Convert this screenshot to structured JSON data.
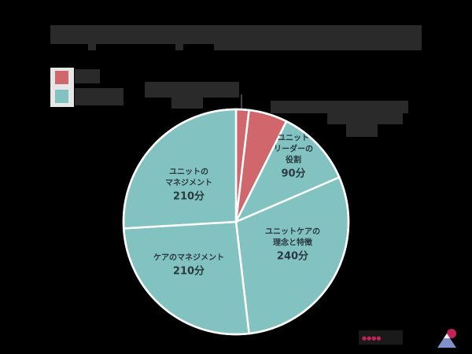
{
  "title": {
    "text": "[redacted title]"
  },
  "legend": {
    "items": [
      {
        "label": "[redacted]",
        "color": "#d0676c"
      },
      {
        "label": "[redacted]",
        "color": "#82c2c0"
      }
    ]
  },
  "external_labels": {
    "top_left": "[redacted]",
    "top_right": "[redacted]"
  },
  "slice_labels": [
    {
      "name": "ユニット\nリーダーの\n役割",
      "value": "90分"
    },
    {
      "name": "ユニットケアの\n理念と特徴",
      "value": "240分"
    },
    {
      "name": "ケアのマネジメント",
      "value": "210分"
    },
    {
      "name": "ユニットの\nマネジメント",
      "value": "210分"
    }
  ],
  "colors": {
    "background": "#000000",
    "red": "#d0676c",
    "teal": "#82c2c0",
    "separator": "#ffffff",
    "label_text": "#2b3a40"
  },
  "chart_data": {
    "type": "pie",
    "title": "",
    "start_angle": 0,
    "direction": "clockwise",
    "unit": "分",
    "slices": [
      {
        "label": "[redacted small slice]",
        "value": 15,
        "color": "#d0676c",
        "labeled": false
      },
      {
        "label": "[redacted]",
        "value": 45,
        "color": "#d0676c",
        "labeled": false
      },
      {
        "label": "ユニットリーダーの役割",
        "value": 90,
        "color": "#82c2c0"
      },
      {
        "label": "ユニットケアの理念と特徴",
        "value": 240,
        "color": "#82c2c0"
      },
      {
        "label": "ケアのマネジメント",
        "value": 210,
        "color": "#82c2c0"
      },
      {
        "label": "ユニットのマネジメント",
        "value": 210,
        "color": "#82c2c0"
      }
    ],
    "legend": {
      "position": "top-left",
      "entries": [
        "[redacted]",
        "[redacted]"
      ]
    }
  }
}
